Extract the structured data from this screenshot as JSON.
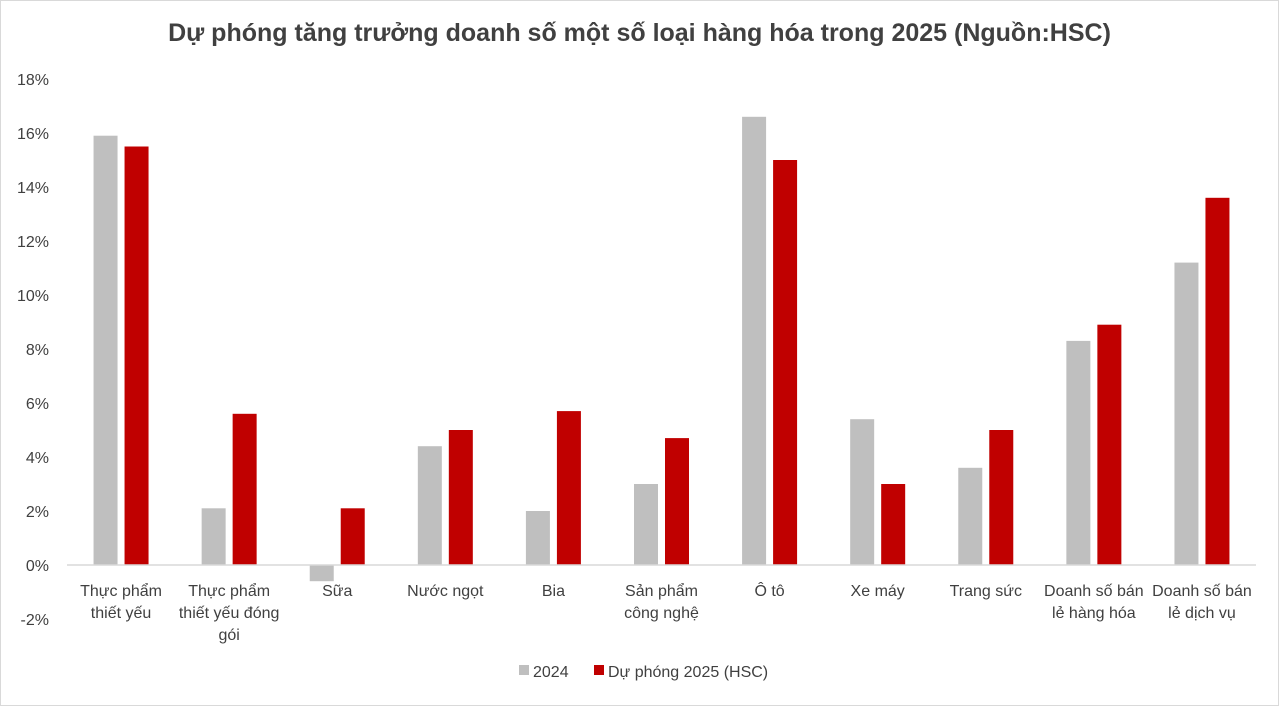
{
  "chart_data": {
    "type": "bar",
    "title": "Dự phóng tăng trưởng doanh số một số loại hàng hóa trong 2025 (Nguồn:HSC)",
    "categories": [
      [
        "Thực phẩm",
        "thiết yếu"
      ],
      [
        "Thực phẩm",
        "thiết yếu đóng",
        "gói"
      ],
      [
        "Sữa"
      ],
      [
        "Nước ngọt"
      ],
      [
        "Bia"
      ],
      [
        "Sản phẩm",
        "công nghệ"
      ],
      [
        "Ô tô"
      ],
      [
        "Xe máy"
      ],
      [
        "Trang sức"
      ],
      [
        "Doanh số bán",
        "lẻ hàng hóa"
      ],
      [
        "Doanh số bán",
        "lẻ dịch vụ"
      ]
    ],
    "series": [
      {
        "name": "2024",
        "color": "#bfbfbf",
        "values": [
          15.9,
          2.1,
          -0.6,
          4.4,
          2.0,
          3.0,
          16.6,
          5.4,
          3.6,
          8.3,
          11.2
        ]
      },
      {
        "name": "Dự phóng 2025 (HSC)",
        "color": "#c00000",
        "values": [
          15.5,
          5.6,
          2.1,
          5.0,
          5.7,
          4.7,
          15.0,
          3.0,
          5.0,
          8.9,
          13.6
        ]
      }
    ],
    "ylim": [
      -2,
      18
    ],
    "yticks": [
      "-2%",
      "0%",
      "2%",
      "4%",
      "6%",
      "8%",
      "10%",
      "12%",
      "14%",
      "16%",
      "18%"
    ],
    "ytick_values": [
      -2,
      0,
      2,
      4,
      6,
      8,
      10,
      12,
      14,
      16,
      18
    ],
    "xlabel": "",
    "ylabel": "",
    "grid": false,
    "legend_position": "bottom"
  }
}
